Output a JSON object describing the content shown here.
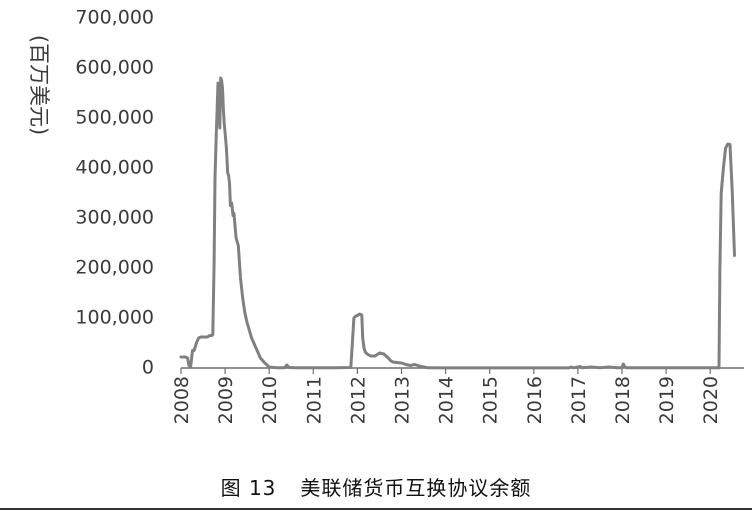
{
  "caption": {
    "figure_number": "图 13",
    "title": "美联储货币互换协议余额"
  },
  "chart_data": {
    "type": "line",
    "title": "美联储货币互换协议余额",
    "xlabel": "",
    "ylabel": "(百万美元)",
    "ylim": [
      0,
      700000
    ],
    "xlim": [
      2008.0,
      2020.6
    ],
    "y_ticks": [
      "0",
      "100,000",
      "200,000",
      "300,000",
      "400,000",
      "500,000",
      "600,000",
      "700,000"
    ],
    "x_ticks": [
      "2008",
      "2009",
      "2010",
      "2011",
      "2012",
      "2013",
      "2014",
      "2015",
      "2016",
      "2017",
      "2018",
      "2019",
      "2020"
    ],
    "grid": false,
    "legend": "none",
    "line_color": "#808080",
    "series": [
      {
        "x": [
          2008.0,
          2008.1,
          2008.15,
          2008.18,
          2008.22,
          2008.26,
          2008.3,
          2008.35,
          2008.4,
          2008.45,
          2008.5,
          2008.55,
          2008.6,
          2008.65,
          2008.7,
          2008.72,
          2008.75,
          2008.77,
          2008.8,
          2008.82,
          2008.84,
          2008.86,
          2008.88,
          2008.9,
          2008.92,
          2008.94,
          2008.96,
          2008.98,
          2009.0,
          2009.03,
          2009.06,
          2009.08,
          2009.1,
          2009.12,
          2009.15,
          2009.18,
          2009.2,
          2009.25,
          2009.3,
          2009.35,
          2009.4,
          2009.45,
          2009.5,
          2009.55,
          2009.6,
          2009.65,
          2009.7,
          2009.75,
          2009.8,
          2009.9,
          2010.0,
          2010.1,
          2010.2,
          2010.35,
          2010.4,
          2010.45,
          2010.6,
          2011.0,
          2011.5,
          2011.85,
          2011.9,
          2011.92,
          2011.95,
          2012.0,
          2012.05,
          2012.1,
          2012.12,
          2012.15,
          2012.18,
          2012.22,
          2012.3,
          2012.4,
          2012.5,
          2012.6,
          2012.7,
          2012.75,
          2012.8,
          2013.0,
          2013.1,
          2013.2,
          2013.3,
          2013.4,
          2013.6,
          2014.0,
          2015.0,
          2016.0,
          2016.8,
          2016.85,
          2016.9,
          2017.0,
          2017.05,
          2017.1,
          2017.3,
          2017.5,
          2017.7,
          2017.9,
          2018.0,
          2018.03,
          2018.06,
          2018.1,
          2018.3,
          2018.7,
          2019.0,
          2019.5,
          2019.9,
          2020.0,
          2020.1,
          2020.15,
          2020.18,
          2020.2,
          2020.22,
          2020.25,
          2020.3,
          2020.35,
          2020.4,
          2020.45,
          2020.5,
          2020.55
        ],
        "values": [
          22000,
          22000,
          20000,
          5000,
          3000,
          35000,
          35000,
          50000,
          60000,
          62000,
          62000,
          62000,
          62000,
          65000,
          65000,
          67000,
          210000,
          380000,
          470000,
          520000,
          570000,
          555000,
          480000,
          580000,
          575000,
          560000,
          520000,
          490000,
          470000,
          440000,
          390000,
          385000,
          370000,
          325000,
          330000,
          305000,
          310000,
          260000,
          245000,
          180000,
          140000,
          110000,
          90000,
          75000,
          60000,
          50000,
          40000,
          30000,
          20000,
          10000,
          2000,
          1000,
          500,
          500,
          6000,
          1000,
          500,
          500,
          500,
          1000,
          70000,
          100000,
          103000,
          105000,
          108000,
          106000,
          60000,
          40000,
          32000,
          28000,
          24000,
          24000,
          30000,
          28000,
          20000,
          15000,
          12000,
          10000,
          7000,
          5000,
          7000,
          4000,
          500,
          300,
          300,
          300,
          300,
          2000,
          500,
          2000,
          3000,
          500,
          2000,
          500,
          2000,
          500,
          500,
          8000,
          3000,
          500,
          500,
          500,
          500,
          500,
          500,
          500,
          500,
          500,
          500,
          500,
          200000,
          350000,
          400000,
          440000,
          448000,
          447000,
          350000,
          225000
        ]
      }
    ]
  }
}
